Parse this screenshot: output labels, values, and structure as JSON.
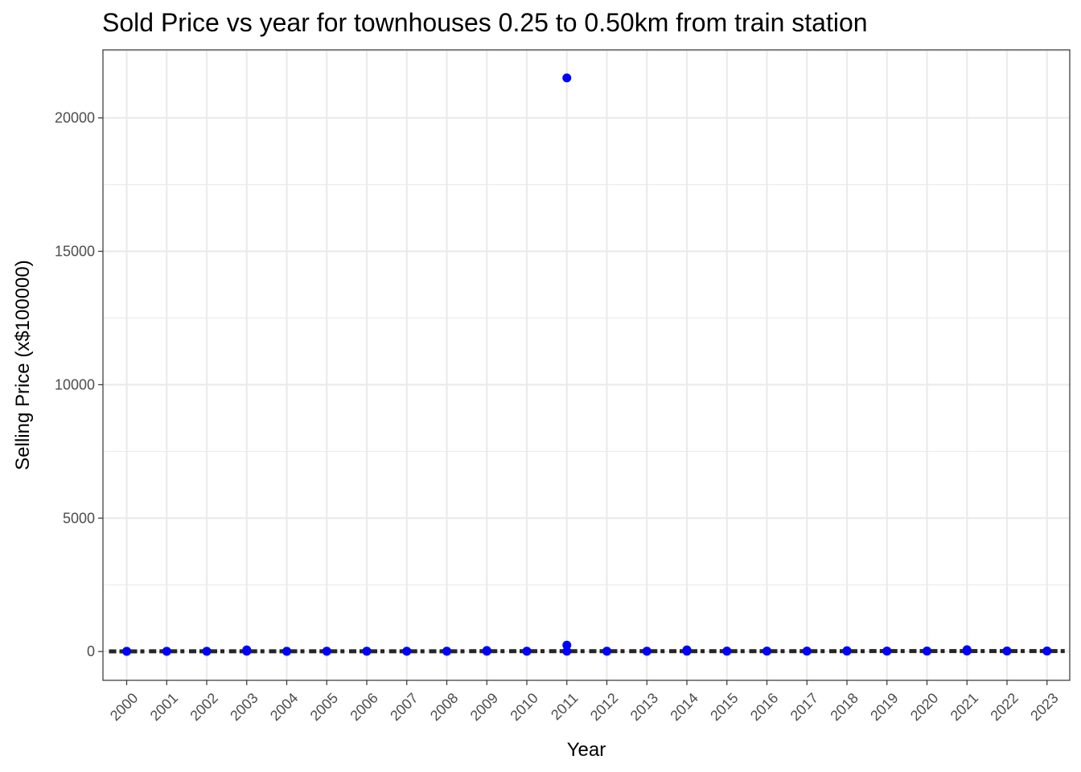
{
  "chart_data": {
    "type": "scatter",
    "title": "Sold Price vs year for townhouses 0.25 to 0.50km from train station",
    "xlabel": "Year",
    "ylabel": "Selling Price (x$100000)",
    "categories": [
      "2000",
      "2001",
      "2002",
      "2003",
      "2004",
      "2005",
      "2006",
      "2007",
      "2008",
      "2009",
      "2010",
      "2011",
      "2012",
      "2013",
      "2014",
      "2015",
      "2016",
      "2017",
      "2018",
      "2019",
      "2020",
      "2021",
      "2022",
      "2023"
    ],
    "yticks": [
      0,
      5000,
      10000,
      15000,
      20000
    ],
    "ylim": [
      -1080,
      22550
    ],
    "grid": true,
    "point_color": "#0000ff",
    "median_color": "#262626",
    "points": [
      {
        "x": "2000",
        "y": 5
      },
      {
        "x": "2000",
        "y": 8
      },
      {
        "x": "2001",
        "y": 6
      },
      {
        "x": "2001",
        "y": 9
      },
      {
        "x": "2002",
        "y": 7
      },
      {
        "x": "2002",
        "y": 10
      },
      {
        "x": "2003",
        "y": 8
      },
      {
        "x": "2003",
        "y": 60
      },
      {
        "x": "2004",
        "y": 7
      },
      {
        "x": "2004",
        "y": 10
      },
      {
        "x": "2005",
        "y": 8
      },
      {
        "x": "2005",
        "y": 11
      },
      {
        "x": "2006",
        "y": 8
      },
      {
        "x": "2006",
        "y": 12
      },
      {
        "x": "2007",
        "y": 9
      },
      {
        "x": "2007",
        "y": 12
      },
      {
        "x": "2008",
        "y": 9
      },
      {
        "x": "2008",
        "y": 12
      },
      {
        "x": "2009",
        "y": 9
      },
      {
        "x": "2009",
        "y": 40
      },
      {
        "x": "2010",
        "y": 10
      },
      {
        "x": "2010",
        "y": 13
      },
      {
        "x": "2011",
        "y": 10
      },
      {
        "x": "2011",
        "y": 240
      },
      {
        "x": "2011",
        "y": 21500
      },
      {
        "x": "2012",
        "y": 10
      },
      {
        "x": "2012",
        "y": 13
      },
      {
        "x": "2013",
        "y": 10
      },
      {
        "x": "2013",
        "y": 14
      },
      {
        "x": "2014",
        "y": 11
      },
      {
        "x": "2014",
        "y": 60
      },
      {
        "x": "2015",
        "y": 11
      },
      {
        "x": "2015",
        "y": 15
      },
      {
        "x": "2016",
        "y": 12
      },
      {
        "x": "2016",
        "y": 16
      },
      {
        "x": "2017",
        "y": 12
      },
      {
        "x": "2017",
        "y": 17
      },
      {
        "x": "2018",
        "y": 13
      },
      {
        "x": "2018",
        "y": 30
      },
      {
        "x": "2019",
        "y": 13
      },
      {
        "x": "2019",
        "y": 18
      },
      {
        "x": "2020",
        "y": 14
      },
      {
        "x": "2020",
        "y": 19
      },
      {
        "x": "2021",
        "y": 15
      },
      {
        "x": "2021",
        "y": 70
      },
      {
        "x": "2022",
        "y": 15
      },
      {
        "x": "2022",
        "y": 20
      },
      {
        "x": "2023",
        "y": 16
      },
      {
        "x": "2023",
        "y": 21
      }
    ],
    "medians": [
      {
        "x": "2000",
        "y": 6
      },
      {
        "x": "2001",
        "y": 7
      },
      {
        "x": "2002",
        "y": 8
      },
      {
        "x": "2003",
        "y": 9
      },
      {
        "x": "2004",
        "y": 8
      },
      {
        "x": "2005",
        "y": 9
      },
      {
        "x": "2006",
        "y": 10
      },
      {
        "x": "2007",
        "y": 10
      },
      {
        "x": "2008",
        "y": 10
      },
      {
        "x": "2009",
        "y": 11
      },
      {
        "x": "2010",
        "y": 11
      },
      {
        "x": "2011",
        "y": 12
      },
      {
        "x": "2012",
        "y": 11
      },
      {
        "x": "2013",
        "y": 12
      },
      {
        "x": "2014",
        "y": 12
      },
      {
        "x": "2015",
        "y": 13
      },
      {
        "x": "2016",
        "y": 13
      },
      {
        "x": "2017",
        "y": 14
      },
      {
        "x": "2018",
        "y": 14
      },
      {
        "x": "2019",
        "y": 15
      },
      {
        "x": "2020",
        "y": 16
      },
      {
        "x": "2021",
        "y": 16
      },
      {
        "x": "2022",
        "y": 17
      },
      {
        "x": "2023",
        "y": 18
      }
    ]
  }
}
